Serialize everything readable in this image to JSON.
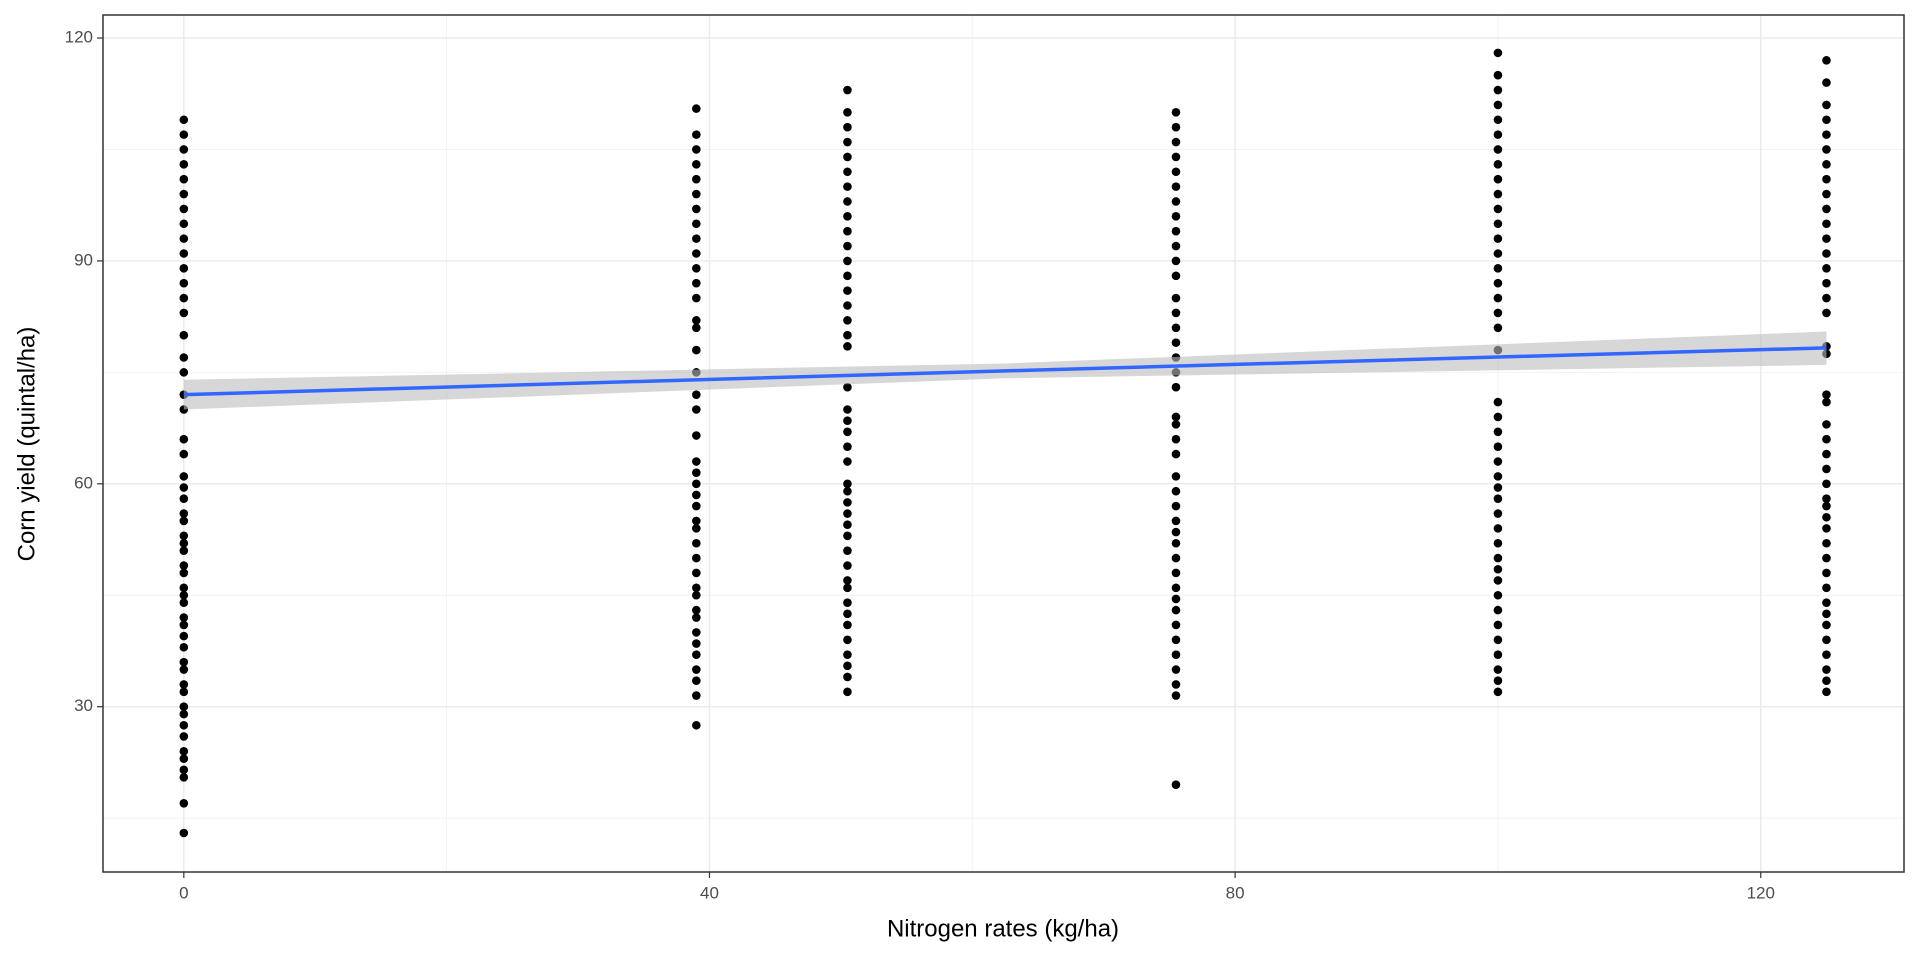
{
  "chart_data": {
    "type": "scatter",
    "x_label": "Nitrogen rates (kg/ha)",
    "y_label": "Corn yield (quintal/ha)",
    "xlim": [
      -6.15,
      130.9
    ],
    "ylim": [
      7.75,
      123.1
    ],
    "xticks": [
      0,
      40,
      80,
      120
    ],
    "yticks": [
      30,
      60,
      90,
      120
    ],
    "grid": true,
    "point_color": "#000000",
    "groups": [
      {
        "x": 0,
        "y": [
          13,
          17,
          20.5,
          21.5,
          23,
          24,
          26,
          27.5,
          29,
          30,
          32,
          33,
          35,
          36,
          38,
          39.5,
          41,
          42,
          44,
          45,
          46,
          48,
          49,
          51,
          52,
          53,
          55,
          56,
          58,
          59.5,
          61,
          64,
          66,
          70,
          72,
          75,
          77,
          80,
          83,
          85,
          87,
          89,
          91,
          93,
          95,
          97,
          99,
          101,
          103,
          105,
          107,
          109
        ]
      },
      {
        "x": 39,
        "y": [
          27.5,
          31.5,
          33.5,
          35,
          37,
          38.5,
          40,
          42,
          43,
          45,
          46,
          48,
          50,
          52,
          54,
          55,
          57,
          58.5,
          60,
          61.5,
          63,
          66.5,
          70,
          72,
          75,
          78,
          81,
          82,
          85,
          87,
          89,
          91,
          93,
          95,
          97,
          99,
          101,
          103,
          105,
          107,
          110.5
        ]
      },
      {
        "x": 50.5,
        "y": [
          32,
          34,
          35.5,
          37,
          39,
          41,
          42.5,
          44,
          46,
          47,
          49,
          51,
          53,
          54.5,
          56,
          57.5,
          59,
          60,
          63,
          65,
          67,
          68.5,
          70,
          73,
          78.5,
          80,
          82,
          84,
          86,
          88,
          90,
          92,
          94,
          96,
          98,
          100,
          102,
          104,
          106,
          108,
          110,
          113
        ]
      },
      {
        "x": 75.5,
        "y": [
          19.5,
          31.5,
          33,
          35,
          37,
          39,
          41,
          43,
          44.5,
          46,
          48,
          50,
          52,
          53.5,
          55,
          57,
          59,
          61,
          64,
          66,
          68,
          69,
          73,
          75,
          77,
          79,
          81,
          83,
          85,
          88,
          90,
          92,
          94,
          96,
          98,
          100,
          102,
          104,
          106,
          108,
          110
        ]
      },
      {
        "x": 100,
        "y": [
          32,
          33.5,
          35,
          37,
          39,
          41,
          43,
          45,
          47,
          48.5,
          50,
          52,
          54,
          56,
          58,
          59.5,
          61,
          63,
          65,
          67,
          69,
          71,
          78,
          81,
          83,
          85,
          87,
          89,
          91,
          93,
          95,
          97,
          99,
          101,
          103,
          105,
          107,
          109,
          111,
          113,
          115,
          118
        ]
      },
      {
        "x": 125,
        "y": [
          32,
          33.5,
          35,
          37,
          39,
          41,
          42.5,
          44,
          46,
          48,
          50,
          52,
          54,
          55.5,
          57,
          58,
          60,
          62,
          64,
          66,
          68,
          71,
          72,
          77.5,
          78.5,
          83,
          85,
          87,
          89,
          91,
          93,
          95,
          97,
          99,
          101,
          103,
          105,
          107,
          109,
          111,
          114,
          117
        ]
      }
    ],
    "fit": {
      "color": "#3366ff",
      "band_color": "#bdbdbd",
      "x": [
        0,
        62.5,
        125
      ],
      "y": [
        72,
        75.2,
        78.3
      ],
      "lower": [
        70,
        74.2,
        76
      ],
      "upper": [
        74,
        76.2,
        80.5
      ]
    }
  }
}
